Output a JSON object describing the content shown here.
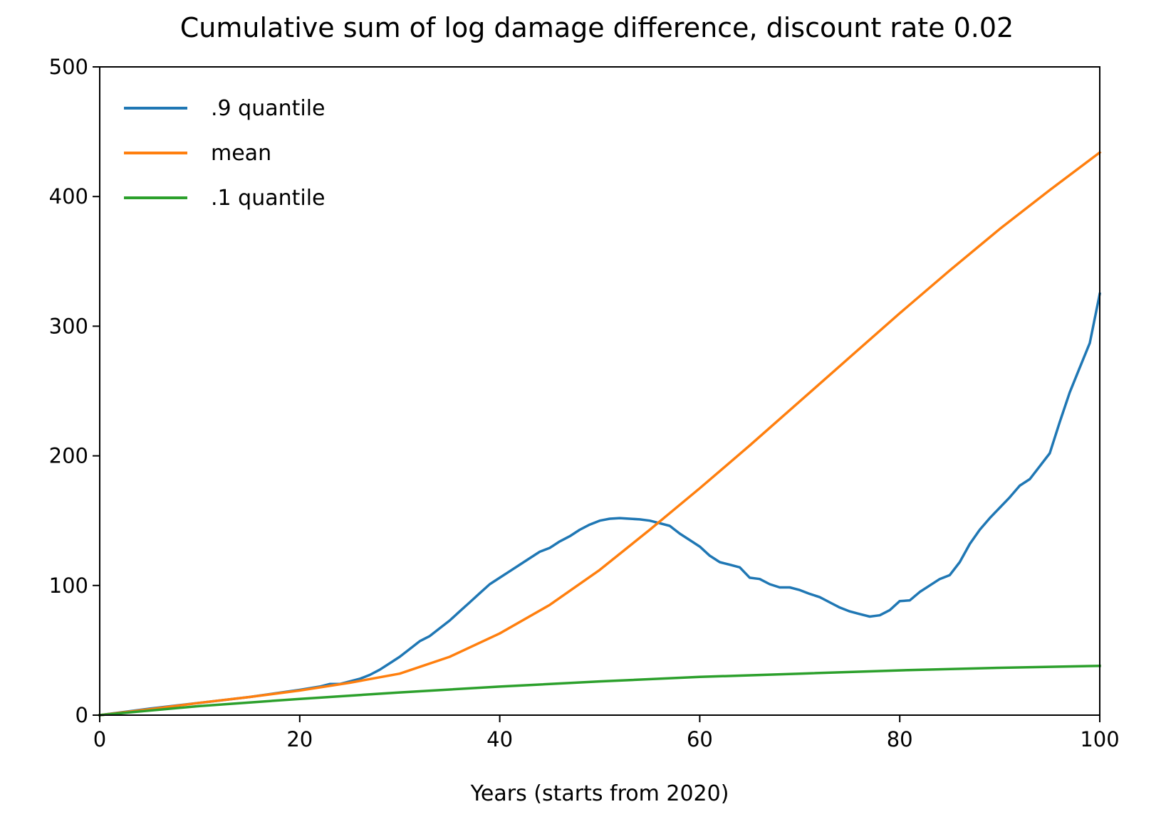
{
  "chart_data": {
    "type": "line",
    "title": "Cumulative sum of log damage difference, discount rate 0.02",
    "xlabel": "Years (starts from 2020)",
    "ylabel": "",
    "xlim": [
      0,
      100
    ],
    "ylim": [
      0,
      500
    ],
    "xticks": [
      0,
      20,
      40,
      60,
      80,
      100
    ],
    "yticks": [
      0,
      100,
      200,
      300,
      400,
      500
    ],
    "grid": false,
    "legend_position": "upper-left",
    "series": [
      {
        "name": ".9 quantile",
        "color": "#1f77b4",
        "x": [
          0,
          5,
          10,
          15,
          20,
          22,
          23,
          24,
          26,
          27,
          28,
          29,
          30,
          31,
          32,
          33,
          34,
          35,
          36,
          37,
          38,
          39,
          40,
          41,
          42,
          43,
          44,
          45,
          46,
          47,
          48,
          49,
          50,
          51,
          52,
          53,
          54,
          55,
          56,
          57,
          58,
          59,
          60,
          61,
          62,
          63,
          64,
          65,
          66,
          67,
          68,
          69,
          70,
          71,
          72,
          73,
          74,
          75,
          76,
          77,
          78,
          79,
          80,
          81,
          82,
          83,
          84,
          85,
          86,
          87,
          88,
          89,
          90,
          91,
          92,
          93,
          94,
          95,
          96,
          97,
          98,
          99,
          100
        ],
        "values": [
          0,
          5,
          9.5,
          14,
          19.5,
          22,
          24,
          24,
          28,
          31,
          35,
          40,
          45,
          51,
          57,
          61,
          67,
          73,
          80,
          87,
          94,
          101,
          106,
          111,
          116,
          121,
          126,
          129,
          134,
          138,
          143,
          147,
          150,
          151.5,
          152,
          151.5,
          151,
          150,
          148,
          146,
          140,
          135,
          130,
          123,
          118,
          116,
          114,
          106,
          105,
          101,
          98.5,
          98.5,
          96.5,
          93.5,
          91,
          87,
          83,
          80,
          78,
          76,
          77,
          81,
          88,
          88.5,
          95,
          100,
          105,
          108,
          118,
          132,
          143,
          152,
          160,
          168,
          177,
          182,
          192,
          202,
          226,
          249,
          268,
          287,
          325
        ]
      },
      {
        "name": "mean",
        "color": "#ff7f0e",
        "x": [
          0,
          5,
          10,
          15,
          20,
          25,
          30,
          35,
          40,
          45,
          50,
          55,
          60,
          65,
          70,
          75,
          80,
          85,
          90,
          95,
          100
        ],
        "values": [
          0,
          4.5,
          9.5,
          14,
          19,
          25,
          32,
          45,
          63,
          85,
          112,
          143,
          175,
          208,
          242,
          276,
          310,
          343,
          375,
          405,
          434
        ]
      },
      {
        "name": ".1 quantile",
        "color": "#2ca02c",
        "x": [
          0,
          10,
          20,
          30,
          40,
          50,
          60,
          70,
          80,
          90,
          100
        ],
        "values": [
          0,
          7,
          12.5,
          17.5,
          22,
          26,
          29.5,
          32,
          34.5,
          36.5,
          38
        ]
      }
    ]
  }
}
